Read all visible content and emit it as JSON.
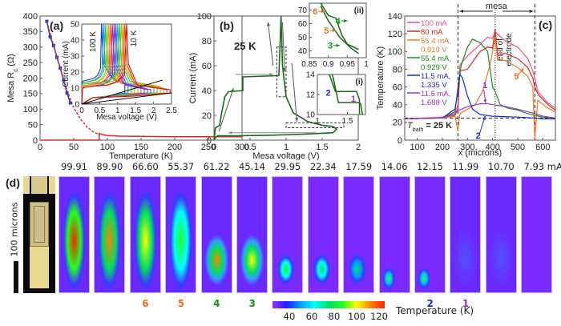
{
  "chart_data": [
    {
      "id": "a",
      "panel_label": "(a)",
      "type": "line",
      "xlabel": "Temperature  (K)",
      "ylabel": "Mesa R_c  (Ω)",
      "xlim": [
        0,
        300
      ],
      "ylim": [
        0,
        400
      ],
      "xticks": [
        0,
        50,
        100,
        150,
        200,
        250,
        300
      ],
      "yticks": [
        0,
        50,
        100,
        150,
        200,
        250,
        300,
        350,
        400
      ],
      "series": [
        {
          "name": "measured",
          "color": "#1a3fd6",
          "style": "line+markers",
          "x": [
            10,
            15,
            20,
            25,
            30,
            35,
            40,
            45
          ],
          "y": [
            383,
            333,
            305,
            267,
            232,
            193,
            152,
            120
          ]
        },
        {
          "name": "fit",
          "color": "#e8262a",
          "style": "dashed",
          "x": [
            10,
            20,
            30,
            40,
            50,
            60,
            70,
            80,
            88
          ],
          "y": [
            383,
            305,
            232,
            160,
            105,
            68,
            42,
            25,
            18
          ]
        },
        {
          "name": "normal",
          "color": "#e8262a",
          "style": "solid",
          "x": [
            0,
            88,
            88,
            90,
            100,
            120,
            150,
            200,
            300
          ],
          "y": [
            0,
            0,
            22,
            20,
            15,
            13,
            12,
            11,
            11
          ]
        }
      ],
      "inset": {
        "xlabel": "Mesa voltage  (V)",
        "ylabel": "Current  (mA)",
        "xlim": [
          0,
          2.5
        ],
        "ylim": [
          0,
          50
        ],
        "xticks": [
          0,
          0.5,
          1,
          1.5,
          2,
          2.5
        ],
        "xtick_labels": [
          "0",
          "0.5",
          "1",
          "1.5",
          "2",
          "2.5"
        ],
        "yticks": [
          0,
          10,
          20,
          30,
          40,
          50
        ],
        "annotations": [
          "100 K",
          "10 K"
        ],
        "curves": [
          {
            "name": "100 K",
            "color": "#2233dd",
            "vknee": 0.55,
            "ihigh": 14
          },
          {
            "name": "90 K",
            "color": "#00a0e8",
            "vknee": 0.6,
            "ihigh": 13
          },
          {
            "name": "80 K",
            "color": "#22bb66",
            "vknee": 0.65,
            "ihigh": 13
          },
          {
            "name": "70 K",
            "color": "#88cc22",
            "vknee": 0.7,
            "ihigh": 12
          },
          {
            "name": "60 K",
            "color": "#f0a020",
            "vknee": 0.75,
            "ihigh": 12
          },
          {
            "name": "55 K",
            "color": "#ee6622",
            "vknee": 0.8,
            "ihigh": 11
          },
          {
            "name": "50 K",
            "color": "#cc2288",
            "vknee": 0.85,
            "ihigh": 11
          },
          {
            "name": "45 K",
            "color": "#8833cc",
            "vknee": 0.9,
            "ihigh": 10
          },
          {
            "name": "40 K",
            "color": "#3355ee",
            "vknee": 0.95,
            "ihigh": 10
          },
          {
            "name": "35 K",
            "color": "#22aaee",
            "vknee": 1.0,
            "ihigh": 11
          },
          {
            "name": "30 K",
            "color": "#22cc44",
            "vknee": 1.05,
            "ihigh": 12
          },
          {
            "name": "25 K",
            "color": "#99bb22",
            "vknee": 1.1,
            "ihigh": 12
          },
          {
            "name": "20 K",
            "color": "#ff9900",
            "vknee": 1.15,
            "ihigh": 11
          },
          {
            "name": "15 K",
            "color": "#ee4411",
            "vknee": 1.2,
            "ihigh": 10
          },
          {
            "name": "10 K",
            "color": "#dd1111",
            "vknee": 1.25,
            "ihigh": 10
          }
        ]
      }
    },
    {
      "id": "b",
      "panel_label": "(b)",
      "type": "line",
      "annotation": "25 K",
      "xlabel": "Mesa voltage  (V)",
      "ylabel": "Current  (mA)",
      "xlim": [
        0,
        2
      ],
      "ylim": [
        0,
        100
      ],
      "xticks": [
        0,
        0.5,
        1,
        1.5,
        2
      ],
      "xtick_labels": [
        "0",
        "0.5",
        "1",
        "1.5",
        "2"
      ],
      "yticks": [
        0,
        20,
        40,
        60,
        80,
        100
      ],
      "series": [
        {
          "name": "IV 25 K",
          "color": "#1a6b1a",
          "x": [
            0,
            0.02,
            0.05,
            0.08,
            0.1,
            0.15,
            0.2,
            0.4,
            0.4,
            0.9,
            0.93,
            0.95,
            1.0,
            1.1,
            1.3,
            1.5,
            1.65,
            1.7,
            1.65,
            1.3,
            0.8,
            0.3,
            0.05,
            0.02,
            0
          ],
          "y": [
            0,
            10,
            11,
            12,
            20,
            35,
            39,
            40,
            51,
            52,
            100,
            60,
            35,
            22,
            15,
            12,
            11,
            9,
            6,
            5,
            4,
            3.5,
            3.5,
            2,
            0
          ]
        }
      ],
      "insets": [
        {
          "label": "(ii)",
          "xlim": [
            0.85,
            1
          ],
          "ylim": [
            35,
            75
          ],
          "xticks": [
            0.85,
            0.9,
            0.95,
            1
          ],
          "xtick_labels": [
            "0.85",
            "0.9",
            "0.95",
            "1"
          ],
          "yticks": [
            40,
            50,
            60,
            70
          ],
          "markers": [
            {
              "num": "6",
              "color": "#f07020",
              "x": 0.88,
              "y": 69
            },
            {
              "num": "5",
              "color": "#f07020",
              "x": 0.91,
              "y": 55
            },
            {
              "num": "4",
              "color": "#1a8a1a",
              "x": 0.94,
              "y": 62
            },
            {
              "num": "3",
              "color": "#1a8a1a",
              "x": 0.92,
              "y": 44
            }
          ]
        },
        {
          "label": "(i)",
          "xlim": [
            1,
            1.8
          ],
          "ylim": [
            10,
            14
          ],
          "xticks": [
            1,
            1.5
          ],
          "xtick_labels": [
            "1",
            "1.5"
          ],
          "yticks": [
            10,
            12,
            14
          ],
          "markers": [
            {
              "num": "2",
              "color": "#1a2ad8",
              "x": 1.3,
              "y": 12.2
            },
            {
              "num": "1",
              "color": "#9933cc",
              "x": 1.72,
              "y": 11.6
            }
          ]
        }
      ]
    },
    {
      "id": "c",
      "panel_label": "(c)",
      "type": "line",
      "xlabel": "x  (microns)",
      "ylabel": "Temperature  (K)",
      "xlim": [
        50,
        650
      ],
      "ylim": [
        0,
        140
      ],
      "xticks": [
        100,
        200,
        300,
        400,
        500,
        600
      ],
      "yticks": [
        0,
        20,
        40,
        60,
        80,
        100,
        120,
        140
      ],
      "annotations": {
        "mesa": "mesa",
        "end_of_electrode": [
          "end of",
          "electrode"
        ],
        "tbath": "T",
        "tbath_sub": "bath",
        "tbath_value": " =  25 K",
        "tbath_level": 25,
        "mesa_left": 262,
        "electrode_end": 410,
        "mesa_right": 568,
        "arrows": [
          {
            "num": "1",
            "color": "#9933cc"
          },
          {
            "num": "2",
            "color": "#1a2ad8"
          },
          {
            "num": "5",
            "color": "#f07020"
          }
        ]
      },
      "legend_position": "top-left",
      "series": [
        {
          "name": "100 mA",
          "label2": "",
          "color": "#f0508a",
          "x": [
            50,
            200,
            250,
            262,
            270,
            300,
            350,
            380,
            400,
            410,
            450,
            500,
            540,
            560,
            568,
            580,
            620,
            650
          ],
          "y": [
            24,
            26,
            30,
            40,
            85,
            95,
            108,
            116,
            115,
            122,
            112,
            105,
            92,
            78,
            70,
            55,
            42,
            36
          ]
        },
        {
          "name": "80 mA",
          "label2": "",
          "color": "#dd2222",
          "x": [
            50,
            200,
            250,
            262,
            270,
            300,
            350,
            380,
            400,
            410,
            420,
            450,
            500,
            540,
            560,
            568,
            580,
            620,
            650
          ],
          "y": [
            24,
            25,
            28,
            35,
            78,
            80,
            100,
            105,
            104,
            125,
            95,
            98,
            92,
            82,
            70,
            60,
            52,
            40,
            34
          ]
        },
        {
          "name": "55.4 mA,",
          "label2": "0.919 V",
          "color": "#f07a20",
          "x": [
            50,
            200,
            250,
            262,
            270,
            300,
            330,
            360,
            390,
            410,
            420,
            450,
            500,
            540,
            560,
            568,
            580,
            620,
            650
          ],
          "y": [
            24,
            25,
            27,
            10,
            30,
            35,
            40,
            55,
            85,
            115,
            90,
            90,
            82,
            72,
            60,
            2,
            45,
            36,
            32
          ]
        },
        {
          "name": "55.4 mA,",
          "label2": "0.929 V",
          "color": "#1e8a1e",
          "x": [
            50,
            200,
            250,
            262,
            275,
            300,
            320,
            350,
            380,
            400,
            410,
            430,
            460,
            500,
            540,
            568,
            600,
            650
          ],
          "y": [
            24,
            25,
            32,
            60,
            85,
            105,
            114,
            110,
            100,
            60,
            55,
            40,
            36,
            34,
            30,
            28,
            26,
            25
          ]
        },
        {
          "name": "11.5 mA,",
          "label2": "1.335 V",
          "color": "#1a2ad8",
          "x": [
            50,
            200,
            250,
            262,
            270,
            280,
            300,
            320,
            350,
            400,
            500,
            568,
            600,
            650
          ],
          "y": [
            24,
            25,
            35,
            55,
            74,
            70,
            50,
            35,
            29,
            27,
            26,
            25,
            24,
            24
          ]
        },
        {
          "name": "11.5 mA,",
          "label2": "1.688 V",
          "color": "#9933cc",
          "x": [
            50,
            200,
            250,
            262,
            300,
            350,
            380,
            400,
            450,
            500,
            568,
            600,
            650
          ],
          "y": [
            24,
            25,
            30,
            33,
            38,
            41,
            41,
            40,
            38,
            35,
            30,
            27,
            25
          ]
        }
      ]
    }
  ],
  "panel_d": {
    "label": "(d)",
    "scale_bar_label": "100 microns",
    "current_unit": "mA",
    "frames": [
      {
        "current": "99.91",
        "marker": "",
        "marker_color": "",
        "heat": 0.95,
        "hot": "full"
      },
      {
        "current": "89.90",
        "marker": "",
        "marker_color": "",
        "heat": 0.9,
        "hot": "full"
      },
      {
        "current": "66.60",
        "marker": "6",
        "marker_color": "#f07020",
        "heat": 0.75,
        "hot": "full"
      },
      {
        "current": "55.37",
        "marker": "5",
        "marker_color": "#f07020",
        "heat": 0.65,
        "hot": "full"
      },
      {
        "current": "61.22",
        "marker": "4",
        "marker_color": "#1a8a1a",
        "heat": 0.9,
        "hot": "bottom"
      },
      {
        "current": "45.14",
        "marker": "3",
        "marker_color": "#1a8a1a",
        "heat": 0.8,
        "hot": "bottom"
      },
      {
        "current": "29.95",
        "marker": "",
        "marker_color": "",
        "heat": 0.6,
        "hot": "spot"
      },
      {
        "current": "22.34",
        "marker": "",
        "marker_color": "",
        "heat": 0.55,
        "hot": "spot"
      },
      {
        "current": "17.59",
        "marker": "",
        "marker_color": "",
        "heat": 0.5,
        "hot": "spot"
      },
      {
        "current": "14.06",
        "marker": "",
        "marker_color": "",
        "heat": 0.5,
        "hot": "corner"
      },
      {
        "current": "12.15",
        "marker": "2",
        "marker_color": "#1a2ad8",
        "heat": 0.45,
        "hot": "corner"
      },
      {
        "current": "11.99",
        "marker": "1",
        "marker_color": "#9933cc",
        "heat": 0.1,
        "hot": "faint"
      },
      {
        "current": "10.70",
        "marker": "",
        "marker_color": "",
        "heat": 0.05,
        "hot": "faint"
      },
      {
        "current": "7.93",
        "marker": "",
        "marker_color": "",
        "heat": 0.0,
        "hot": "none"
      }
    ],
    "colorbar": {
      "label": "Temperature  (K)",
      "range": [
        25,
        125
      ],
      "ticks": [
        40,
        60,
        80,
        100,
        120
      ],
      "colors": [
        "#9b30ff",
        "#2020ff",
        "#00a0ff",
        "#00ffff",
        "#00e060",
        "#20ff20",
        "#ffff00",
        "#ff8000",
        "#ff2000"
      ]
    }
  }
}
